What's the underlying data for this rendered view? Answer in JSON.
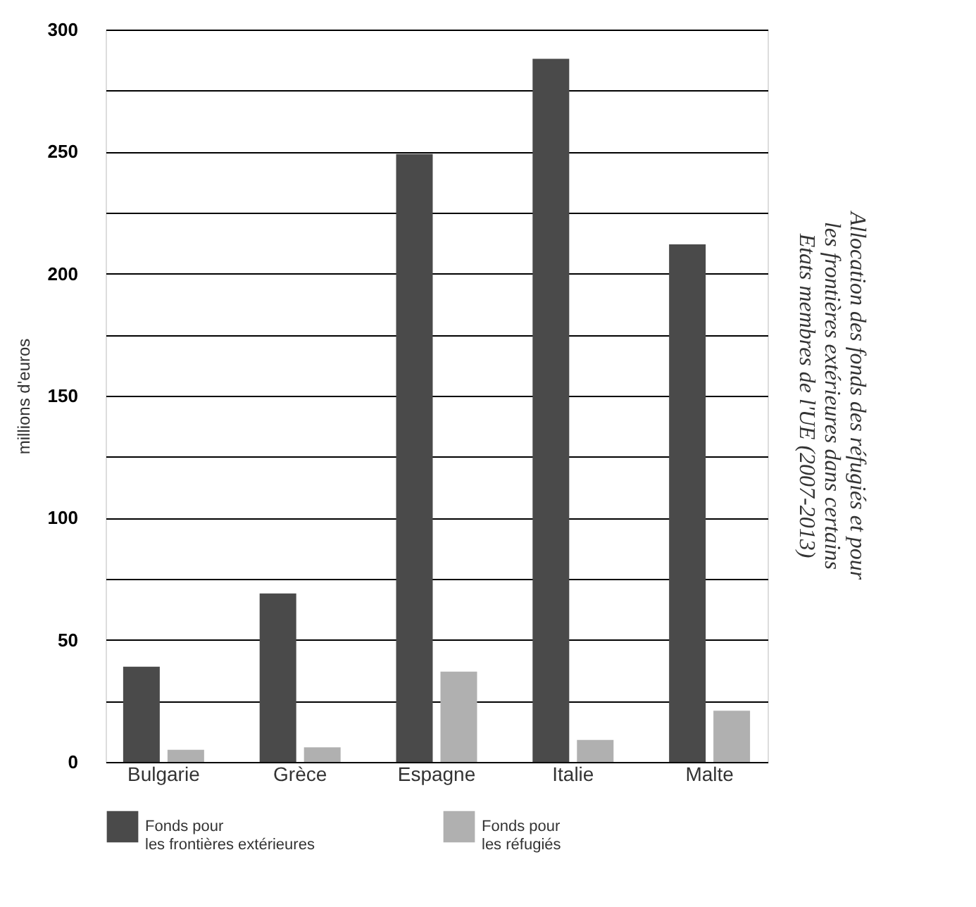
{
  "chart_data": {
    "type": "bar",
    "title": "Allocation des fonds des réfugiés et pour les frontières extérieures dans certains Etats membres de l'UE (2007-2013)",
    "ylabel": "millions d'euros",
    "categories": [
      "Bulgarie",
      "Grèce",
      "Espagne",
      "Italie",
      "Malte"
    ],
    "series": [
      {
        "name": "Fonds pour les frontières extérieures",
        "color": "#4a4a4a",
        "values": [
          39,
          69,
          249,
          288,
          212
        ]
      },
      {
        "name": "Fonds pour les réfugiés",
        "color": "#b0b0b0",
        "values": [
          5,
          6,
          37,
          9,
          21
        ]
      }
    ],
    "ylim": [
      0,
      300
    ],
    "yticks": [
      0,
      {
        "value": 25,
        "label": null
      },
      50,
      {
        "value": 75,
        "label": null
      },
      100,
      {
        "value": 125,
        "label": null
      },
      150,
      {
        "value": 175,
        "label": null
      },
      200,
      {
        "value": 225,
        "label": null
      },
      250,
      {
        "value": 275,
        "label": null
      },
      300
    ],
    "grid": "y",
    "legend": "bottom"
  }
}
